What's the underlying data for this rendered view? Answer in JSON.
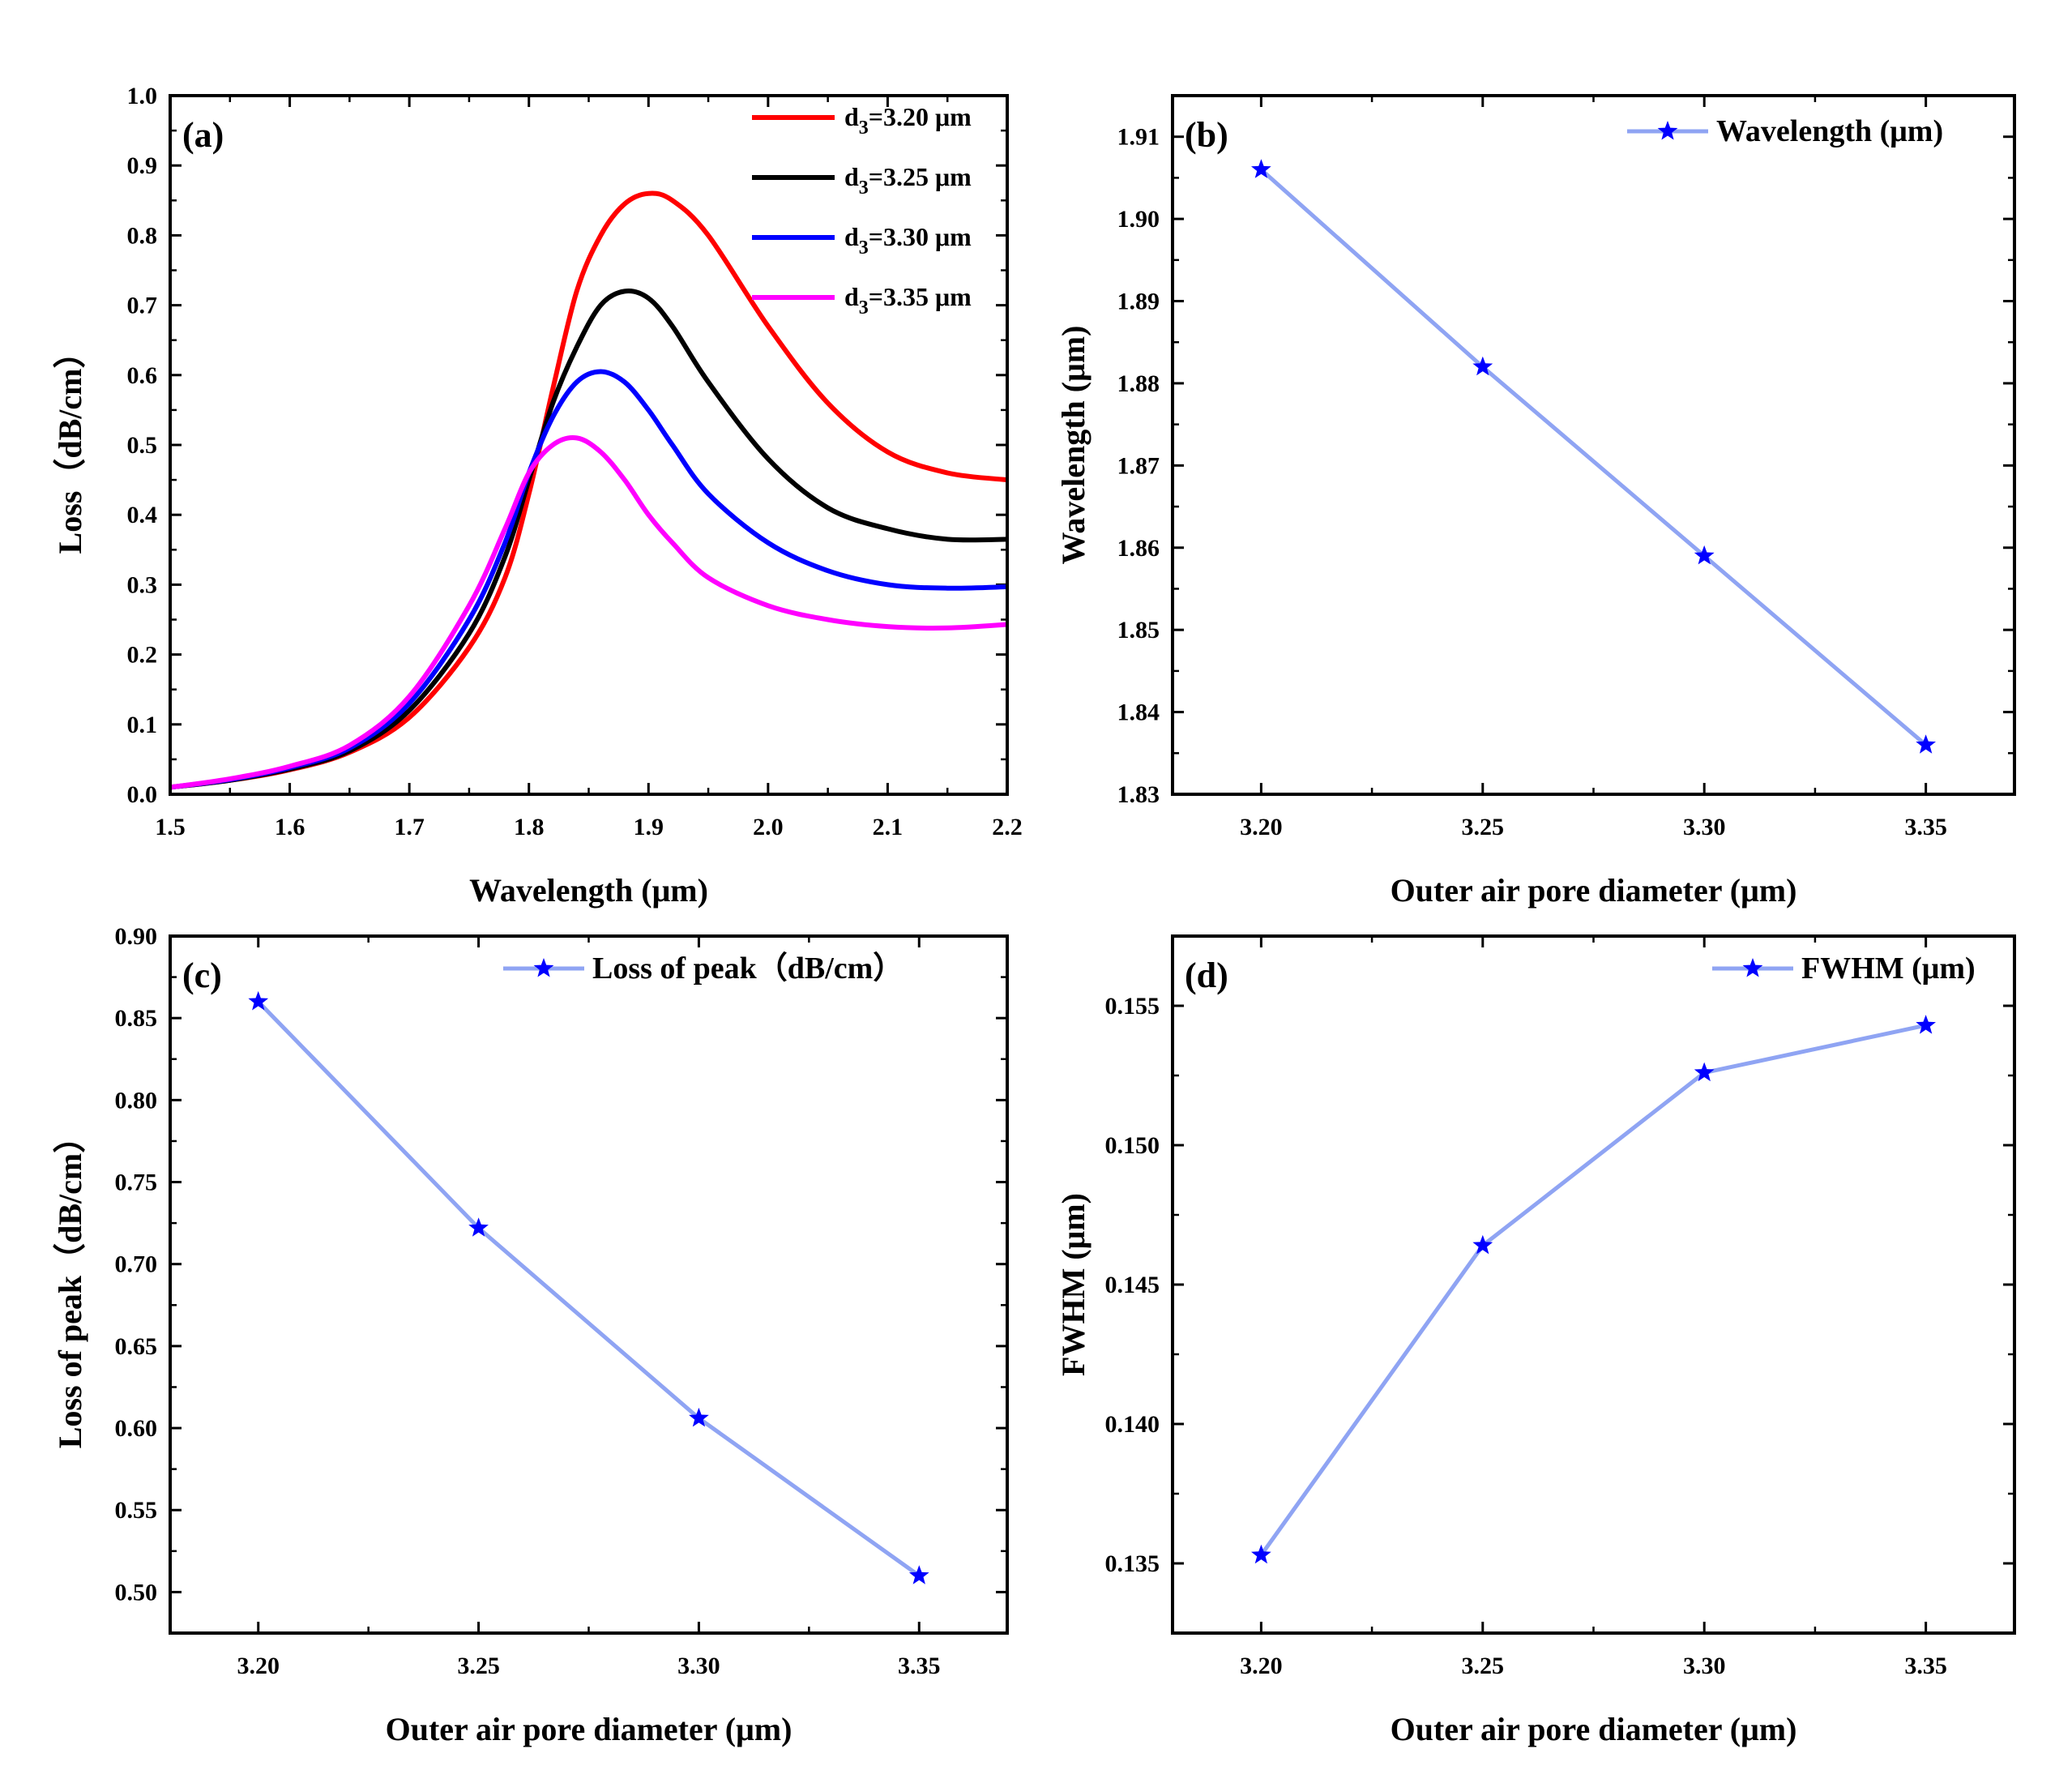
{
  "chart_data": [
    {
      "panel": "(a)",
      "type": "line",
      "xlabel": "Wavelength (μm)",
      "ylabel": "Loss（dB/cm）",
      "xlim": [
        1.5,
        2.2
      ],
      "ylim": [
        0.0,
        1.0
      ],
      "xticks": [
        "1.5",
        "1.6",
        "1.7",
        "1.8",
        "1.9",
        "2.0",
        "2.1",
        "2.2"
      ],
      "yticks": [
        "0.0",
        "0.1",
        "0.2",
        "0.3",
        "0.4",
        "0.5",
        "0.6",
        "0.7",
        "0.8",
        "0.9",
        "1.0"
      ],
      "legend": "top-right",
      "series": [
        {
          "sub": "3",
          "value_label": "=3.20 μm",
          "color": "#ff0000",
          "x": [
            1.5,
            1.55,
            1.6,
            1.65,
            1.7,
            1.75,
            1.78,
            1.8,
            1.82,
            1.84,
            1.86,
            1.88,
            1.9,
            1.92,
            1.95,
            2.0,
            2.05,
            2.1,
            2.15,
            2.2
          ],
          "y": [
            0.01,
            0.02,
            0.035,
            0.06,
            0.11,
            0.21,
            0.31,
            0.43,
            0.58,
            0.72,
            0.8,
            0.845,
            0.86,
            0.85,
            0.8,
            0.67,
            0.56,
            0.49,
            0.46,
            0.45
          ]
        },
        {
          "sub": "3",
          "value_label": "=3.25 μm",
          "color": "#000000",
          "x": [
            1.5,
            1.55,
            1.6,
            1.65,
            1.7,
            1.75,
            1.78,
            1.8,
            1.82,
            1.84,
            1.86,
            1.88,
            1.9,
            1.92,
            1.95,
            2.0,
            2.05,
            2.1,
            2.15,
            2.2
          ],
          "y": [
            0.01,
            0.02,
            0.036,
            0.062,
            0.12,
            0.23,
            0.34,
            0.45,
            0.56,
            0.64,
            0.7,
            0.72,
            0.71,
            0.67,
            0.59,
            0.48,
            0.41,
            0.38,
            0.365,
            0.365
          ]
        },
        {
          "sub": "3",
          "value_label": "=3.30 μm",
          "color": "#0000ff",
          "x": [
            1.5,
            1.55,
            1.6,
            1.65,
            1.7,
            1.75,
            1.78,
            1.8,
            1.82,
            1.84,
            1.86,
            1.88,
            1.9,
            1.92,
            1.95,
            2.0,
            2.05,
            2.1,
            2.15,
            2.2
          ],
          "y": [
            0.01,
            0.021,
            0.038,
            0.066,
            0.13,
            0.25,
            0.36,
            0.46,
            0.54,
            0.59,
            0.605,
            0.59,
            0.55,
            0.5,
            0.43,
            0.36,
            0.32,
            0.3,
            0.295,
            0.297
          ]
        },
        {
          "sub": "3",
          "value_label": "=3.35 μm",
          "color": "#ff00ff",
          "x": [
            1.5,
            1.55,
            1.6,
            1.65,
            1.7,
            1.75,
            1.78,
            1.8,
            1.82,
            1.84,
            1.86,
            1.88,
            1.9,
            1.92,
            1.95,
            2.0,
            2.05,
            2.1,
            2.15,
            2.2
          ],
          "y": [
            0.01,
            0.022,
            0.04,
            0.07,
            0.14,
            0.27,
            0.38,
            0.46,
            0.5,
            0.51,
            0.49,
            0.45,
            0.4,
            0.36,
            0.31,
            0.27,
            0.25,
            0.24,
            0.238,
            0.243
          ]
        }
      ],
      "legend_prefix": "d"
    },
    {
      "panel": "(b)",
      "type": "line",
      "xlabel": "Outer air pore diameter (μm)",
      "ylabel": "Wavelength (μm)",
      "xlim": [
        3.18,
        3.37
      ],
      "ylim": [
        1.83,
        1.915
      ],
      "xticks": [
        "3.20",
        "3.25",
        "3.30",
        "3.35"
      ],
      "yticks": [
        "1.83",
        "1.84",
        "1.85",
        "1.86",
        "1.87",
        "1.88",
        "1.89",
        "1.90",
        "1.91"
      ],
      "legend": "top-right",
      "series": [
        {
          "name": "Wavelength (μm)",
          "color": "#8fa4f3",
          "marker_color": "#0000ff",
          "x": [
            3.2,
            3.25,
            3.3,
            3.35
          ],
          "y": [
            1.906,
            1.882,
            1.859,
            1.836
          ]
        }
      ]
    },
    {
      "panel": "(c)",
      "type": "line",
      "xlabel": "Outer air pore diameter (μm)",
      "ylabel": "Loss of peak（dB/cm）",
      "xlim": [
        3.18,
        3.37
      ],
      "ylim": [
        0.475,
        0.9
      ],
      "xticks": [
        "3.20",
        "3.25",
        "3.30",
        "3.35"
      ],
      "yticks": [
        "0.50",
        "0.55",
        "0.60",
        "0.65",
        "0.70",
        "0.75",
        "0.80",
        "0.85",
        "0.90"
      ],
      "legend": "top-right",
      "series": [
        {
          "name": "Loss of peak（dB/cm）",
          "color": "#8fa4f3",
          "marker_color": "#0000ff",
          "x": [
            3.2,
            3.25,
            3.3,
            3.35
          ],
          "y": [
            0.86,
            0.722,
            0.606,
            0.51
          ]
        }
      ]
    },
    {
      "panel": "(d)",
      "type": "line",
      "xlabel": "Outer air pore diameter (μm)",
      "ylabel": "FWHM (μm)",
      "xlim": [
        3.18,
        3.37
      ],
      "ylim": [
        0.1325,
        0.1575
      ],
      "xticks": [
        "3.20",
        "3.25",
        "3.30",
        "3.35"
      ],
      "yticks": [
        "0.135",
        "0.140",
        "0.145",
        "0.150",
        "0.155"
      ],
      "legend": "top-right",
      "series": [
        {
          "name": "FWHM (μm)",
          "color": "#8fa4f3",
          "marker_color": "#0000ff",
          "x": [
            3.2,
            3.25,
            3.3,
            3.35
          ],
          "y": [
            0.1353,
            0.1464,
            0.1526,
            0.1543
          ]
        }
      ]
    }
  ]
}
